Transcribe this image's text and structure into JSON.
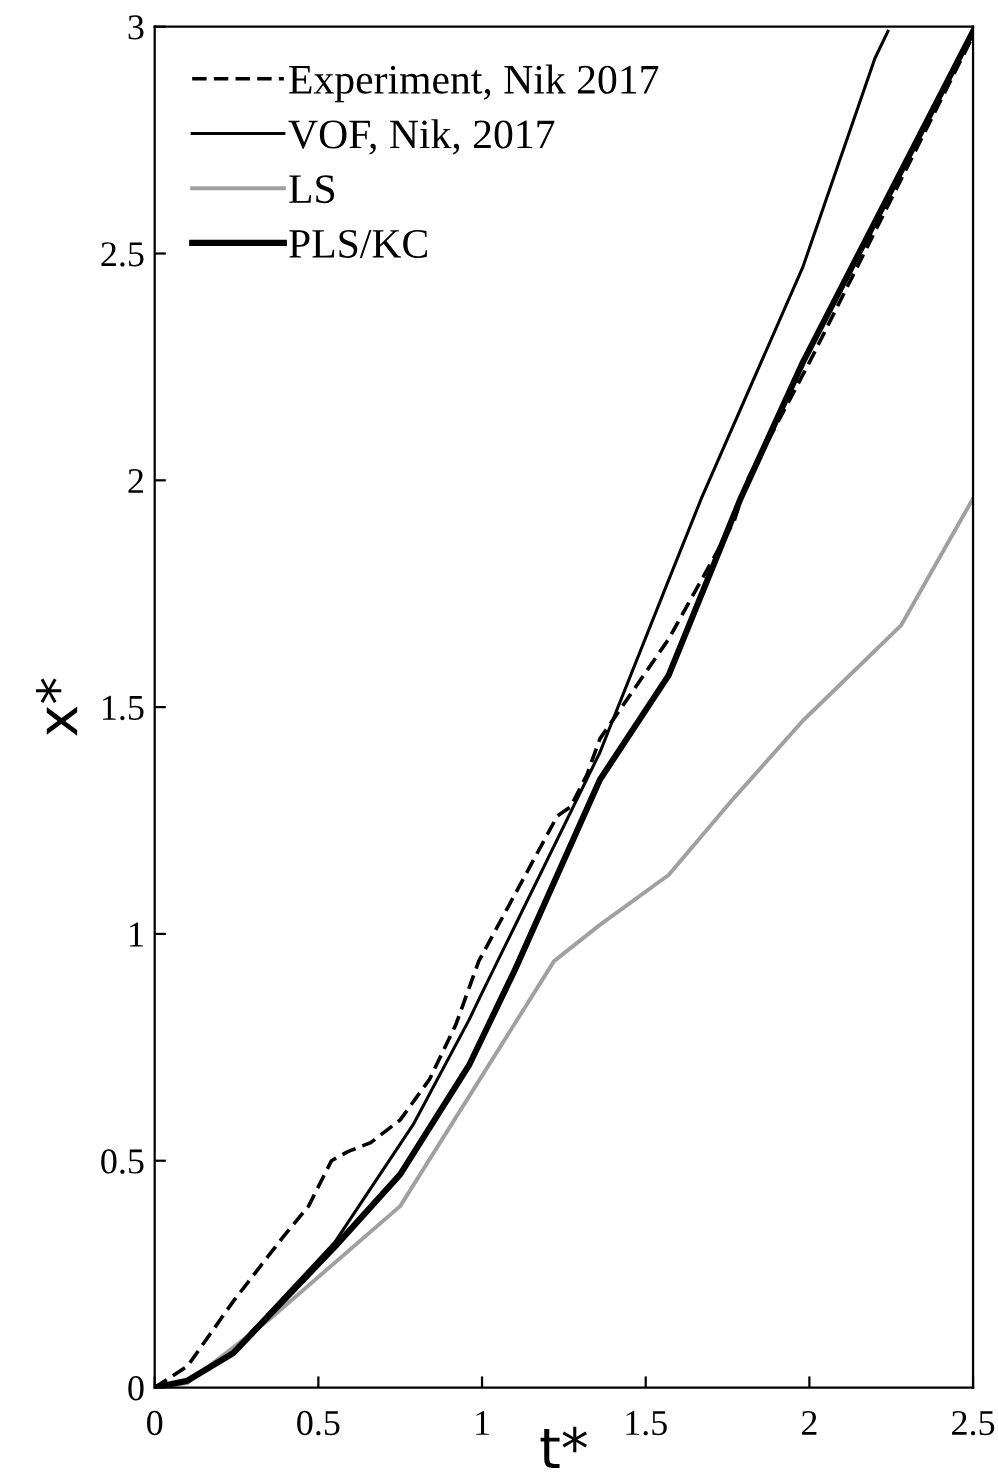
{
  "chart_data": {
    "type": "line",
    "xlabel": "t*",
    "ylabel": "x*",
    "xlim": [
      0,
      2.5
    ],
    "ylim": [
      0,
      3
    ],
    "xticks": [
      0,
      {
        "value": 0.5,
        "label": "0.5"
      },
      1,
      {
        "value": 1.5,
        "label": "1.5"
      },
      2,
      {
        "value": 2.5,
        "label": "2.5"
      }
    ],
    "yticks": [
      0,
      {
        "value": 0.5,
        "label": "0.5"
      },
      1,
      {
        "value": 1.5,
        "label": "1.5"
      },
      2,
      {
        "value": 2.5,
        "label": "2.5"
      },
      3
    ],
    "legend": "top left",
    "grid": false,
    "marker": "none",
    "series": [
      {
        "name": "Experiment, Nik 2017",
        "color": "#000000",
        "line_style": "dashed",
        "x": [
          0,
          0.1,
          0.24,
          0.39,
          0.47,
          0.54,
          0.59,
          0.66,
          0.75,
          0.84,
          0.92,
          0.99,
          1.23,
          1.27,
          1.32,
          1.36,
          1.57,
          1.77,
          1.81,
          2.0,
          2.5
        ],
        "values": [
          0,
          0.047,
          0.19,
          0.33,
          0.4,
          0.5,
          0.52,
          0.54,
          0.59,
          0.68,
          0.8,
          0.94,
          1.26,
          1.28,
          1.35,
          1.43,
          1.65,
          1.91,
          2.0,
          2.26,
          2.98
        ]
      },
      {
        "name": "VOF, Nik, 2017",
        "color": "#000000",
        "line_style": "solid",
        "x": [
          0,
          0.1,
          0.24,
          0.55,
          0.79,
          0.96,
          1.0,
          1.36,
          1.57,
          1.67,
          1.98,
          2.2,
          2.24
        ],
        "values": [
          0,
          0.015,
          0.08,
          0.32,
          0.58,
          0.81,
          0.87,
          1.4,
          1.78,
          1.96,
          2.47,
          2.93,
          2.99
        ]
      },
      {
        "name": "LS",
        "color": "#a0a0a0",
        "line_style": "solid",
        "x": [
          0,
          0.1,
          0.35,
          0.75,
          1.22,
          1.36,
          1.57,
          1.77,
          1.98,
          2.28,
          2.5
        ],
        "values": [
          0,
          0.01,
          0.15,
          0.4,
          0.94,
          1.02,
          1.13,
          1.3,
          1.47,
          1.68,
          1.96
        ]
      },
      {
        "name": "PLS/KC",
        "color": "#000000",
        "line_style": "solid",
        "x": [
          0,
          0.1,
          0.24,
          0.55,
          0.75,
          0.96,
          1.1,
          1.36,
          1.57,
          1.79,
          1.98,
          2.5
        ],
        "values": [
          0,
          0.015,
          0.076,
          0.31,
          0.47,
          0.71,
          0.92,
          1.34,
          1.57,
          1.96,
          2.26,
          2.99
        ]
      }
    ]
  }
}
